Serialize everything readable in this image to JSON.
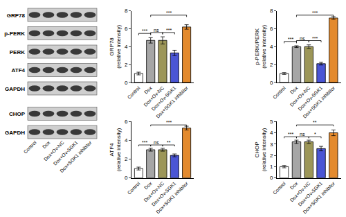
{
  "blot": {
    "rows": [
      "GRP78",
      "p-PERK",
      "PERK",
      "ATF4",
      "GAPDH",
      "CHOP",
      "GAPDH"
    ],
    "lanes": [
      "Control",
      "Dox",
      "Dox+Ov-NC",
      "Dox+Ov-SGK1",
      "Dox+SGK1 inhibitor"
    ]
  },
  "chart_data": [
    {
      "type": "bar",
      "y_label": "GRP78\n(relative intensity)",
      "categories": [
        "Control",
        "Dox",
        "Dox+Ov-NC",
        "Dox+Ov-SGK1",
        "Dox+SGK1 inhibitor"
      ],
      "values": [
        1.0,
        4.7,
        4.7,
        3.3,
        6.2
      ],
      "errors": [
        0.15,
        0.3,
        0.4,
        0.3,
        0.25
      ],
      "colors": [
        "#ffffff",
        "#a6a6a6",
        "#9c9658",
        "#4a55d4",
        "#e38a2e"
      ],
      "ylim": [
        0,
        8
      ],
      "yticks": [
        0,
        2,
        4,
        6,
        8
      ],
      "annotations": [
        {
          "from": "Control",
          "to": "Dox",
          "text": "***"
        },
        {
          "from": "Dox",
          "to": "Dox+Ov-NC",
          "text": "ns"
        },
        {
          "from": "Dox+Ov-NC",
          "to": "Dox+Ov-SGK1",
          "text": "***"
        },
        {
          "from": "Dox",
          "to": "Dox+SGK1 inhibitor",
          "text": "***"
        }
      ]
    },
    {
      "type": "bar",
      "y_label": "p-PERK/PERK\n(relative intensity)",
      "categories": [
        "Control",
        "Dox",
        "Dox+Ov-NC",
        "Dox+Ov-SGK1",
        "Dox+SGK1 inhibitor"
      ],
      "values": [
        1.0,
        4.0,
        4.0,
        2.1,
        7.2
      ],
      "errors": [
        0.1,
        0.1,
        0.2,
        0.15,
        0.15
      ],
      "colors": [
        "#ffffff",
        "#a6a6a6",
        "#9c9658",
        "#4a55d4",
        "#e38a2e"
      ],
      "ylim": [
        0,
        8
      ],
      "yticks": [
        0,
        2,
        4,
        6,
        8
      ],
      "annotations": [
        {
          "from": "Control",
          "to": "Dox",
          "text": "***"
        },
        {
          "from": "Dox",
          "to": "Dox+Ov-NC",
          "text": "ns"
        },
        {
          "from": "Dox+Ov-NC",
          "to": "Dox+Ov-SGK1",
          "text": "***"
        },
        {
          "from": "Dox",
          "to": "Dox+SGK1 inhibitor",
          "text": "***"
        }
      ]
    },
    {
      "type": "bar",
      "y_label": "ATF4\n(relative intensity)",
      "categories": [
        "Control",
        "Dox",
        "Dox+Ov-NC",
        "Dox+Ov-SGK1",
        "Dox+SGK1 inhibitor"
      ],
      "values": [
        1.0,
        3.0,
        3.0,
        2.4,
        5.3
      ],
      "errors": [
        0.15,
        0.15,
        0.15,
        0.15,
        0.2
      ],
      "colors": [
        "#ffffff",
        "#a6a6a6",
        "#9c9658",
        "#4a55d4",
        "#e38a2e"
      ],
      "ylim": [
        0,
        6
      ],
      "yticks": [
        0,
        2,
        4,
        6
      ],
      "annotations": [
        {
          "from": "Control",
          "to": "Dox",
          "text": "***"
        },
        {
          "from": "Dox",
          "to": "Dox+Ov-NC",
          "text": "ns"
        },
        {
          "from": "Dox+Ov-NC",
          "to": "Dox+Ov-SGK1",
          "text": "**"
        },
        {
          "from": "Dox",
          "to": "Dox+SGK1 inhibitor",
          "text": "***"
        }
      ]
    },
    {
      "type": "bar",
      "y_label": "CHOP\n(relative intensity)",
      "categories": [
        "Control",
        "Dox",
        "Dox+Ov-NC",
        "Dox+Ov-SGK1",
        "Dox+SGK1 inhibitor"
      ],
      "values": [
        1.0,
        3.2,
        3.2,
        2.6,
        4.0
      ],
      "errors": [
        0.1,
        0.15,
        0.15,
        0.2,
        0.25
      ],
      "colors": [
        "#ffffff",
        "#a6a6a6",
        "#9c9658",
        "#4a55d4",
        "#e38a2e"
      ],
      "ylim": [
        0,
        5
      ],
      "yticks": [
        0,
        1,
        2,
        3,
        4,
        5
      ],
      "annotations": [
        {
          "from": "Control",
          "to": "Dox",
          "text": "***"
        },
        {
          "from": "Dox",
          "to": "Dox+Ov-NC",
          "text": "ns"
        },
        {
          "from": "Dox+Ov-NC",
          "to": "Dox+Ov-SGK1",
          "text": "*"
        },
        {
          "from": "Dox",
          "to": "Dox+SGK1 inhibitor",
          "text": "**"
        }
      ]
    }
  ]
}
